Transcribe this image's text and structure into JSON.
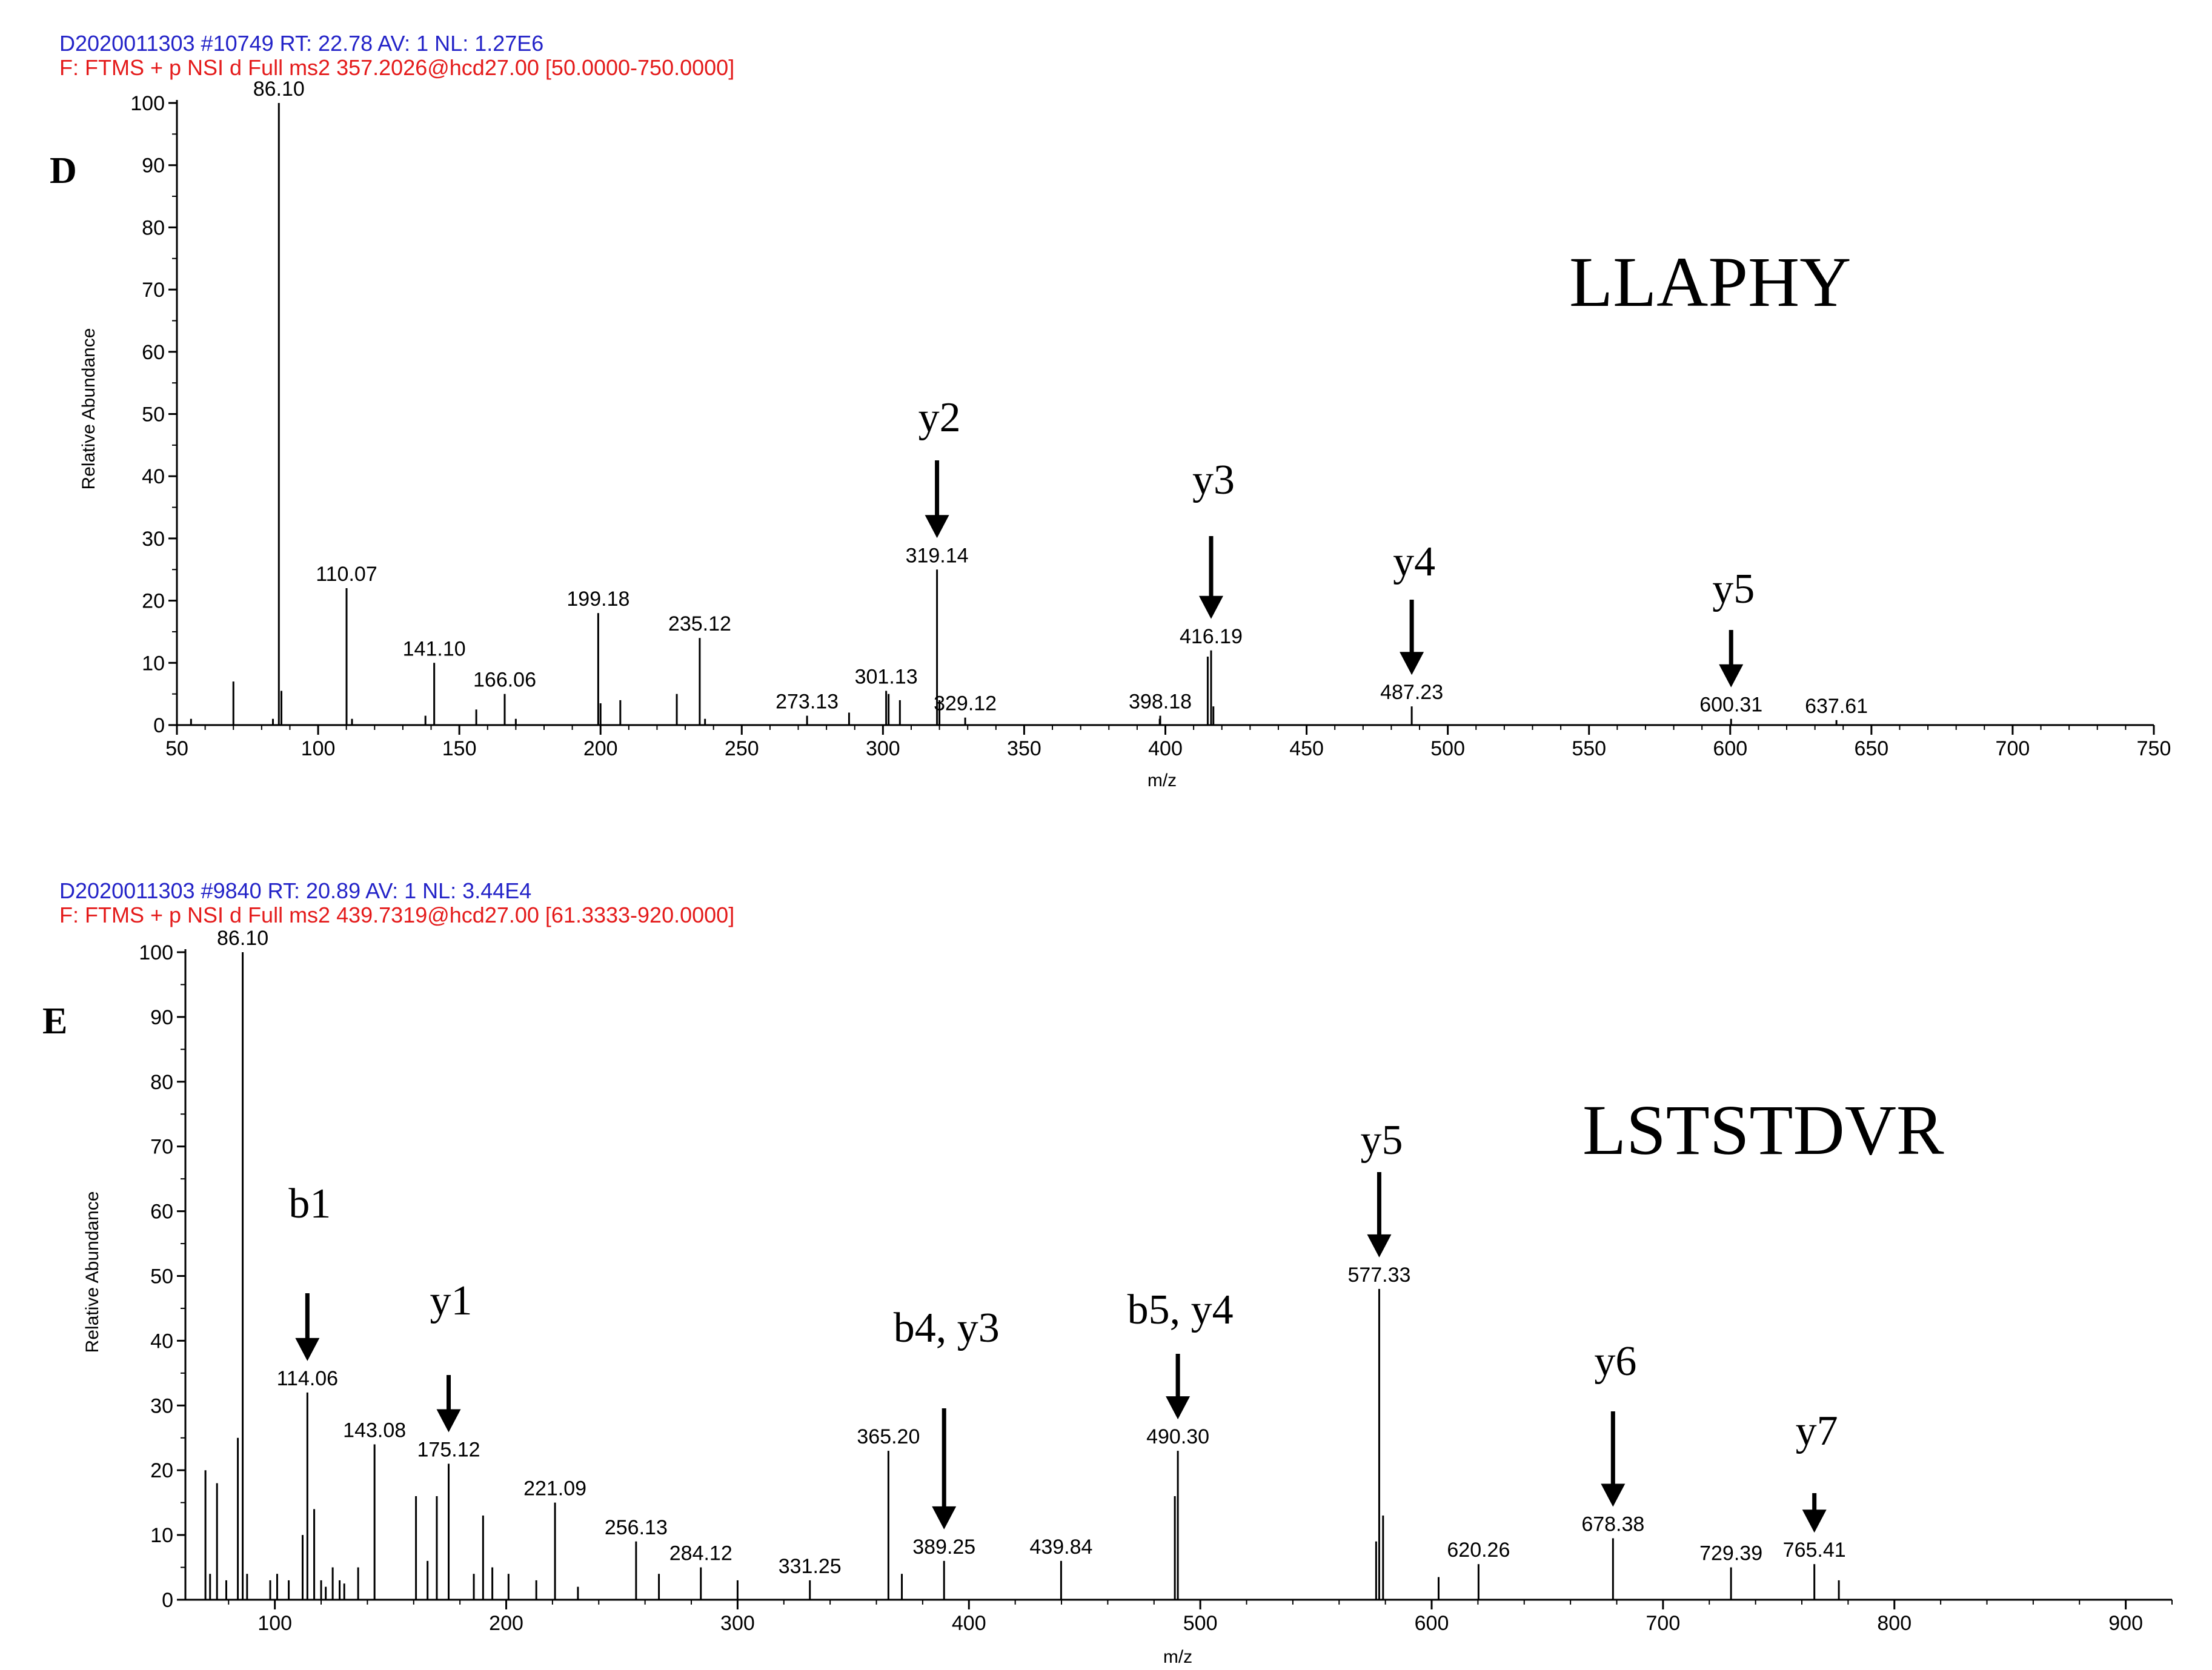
{
  "chart_data": [
    {
      "type": "bar",
      "panel_label": "D",
      "header_line1": "D2020011303 #10749   RT: 22.78   AV: 1   NL: 1.27E6",
      "header_line2": "F: FTMS + p NSI d Full ms2 357.2026@hcd27.00 [50.0000-750.0000]",
      "peptide": "LLAPHY",
      "xlabel": "m/z",
      "ylabel": "Relative Abundance",
      "xlim": [
        50,
        750
      ],
      "ylim": [
        0,
        100
      ],
      "xticks": [
        50,
        100,
        150,
        200,
        250,
        300,
        350,
        400,
        450,
        500,
        550,
        600,
        650,
        700,
        750
      ],
      "yticks": [
        0,
        10,
        20,
        30,
        40,
        50,
        60,
        70,
        80,
        90,
        100
      ],
      "labeled_peaks": [
        {
          "mz": 86.1,
          "intensity": 100,
          "label": "86.10"
        },
        {
          "mz": 110.07,
          "intensity": 22,
          "label": "110.07"
        },
        {
          "mz": 141.1,
          "intensity": 10,
          "label": "141.10"
        },
        {
          "mz": 166.06,
          "intensity": 5,
          "label": "166.06"
        },
        {
          "mz": 199.18,
          "intensity": 18,
          "label": "199.18"
        },
        {
          "mz": 235.12,
          "intensity": 14,
          "label": "235.12"
        },
        {
          "mz": 273.13,
          "intensity": 1.5,
          "label": "273.13"
        },
        {
          "mz": 301.13,
          "intensity": 5.5,
          "label": "301.13"
        },
        {
          "mz": 319.14,
          "intensity": 25,
          "label": "319.14"
        },
        {
          "mz": 329.12,
          "intensity": 1.2,
          "label": "329.12"
        },
        {
          "mz": 398.18,
          "intensity": 1.5,
          "label": "398.18"
        },
        {
          "mz": 416.19,
          "intensity": 12,
          "label": "416.19"
        },
        {
          "mz": 487.23,
          "intensity": 3,
          "label": "487.23"
        },
        {
          "mz": 600.31,
          "intensity": 1,
          "label": "600.31"
        },
        {
          "mz": 637.61,
          "intensity": 0.8,
          "label": "637.61"
        }
      ],
      "minor_peaks": [
        {
          "mz": 55,
          "intensity": 1
        },
        {
          "mz": 70,
          "intensity": 7
        },
        {
          "mz": 84,
          "intensity": 1
        },
        {
          "mz": 87,
          "intensity": 5.5
        },
        {
          "mz": 112,
          "intensity": 1
        },
        {
          "mz": 138,
          "intensity": 1.5
        },
        {
          "mz": 156,
          "intensity": 2.5
        },
        {
          "mz": 170,
          "intensity": 1
        },
        {
          "mz": 200,
          "intensity": 3.5
        },
        {
          "mz": 207,
          "intensity": 4
        },
        {
          "mz": 227,
          "intensity": 5
        },
        {
          "mz": 237,
          "intensity": 1
        },
        {
          "mz": 288,
          "intensity": 2
        },
        {
          "mz": 302,
          "intensity": 5
        },
        {
          "mz": 306,
          "intensity": 4
        },
        {
          "mz": 320,
          "intensity": 4
        },
        {
          "mz": 398,
          "intensity": 1
        },
        {
          "mz": 415,
          "intensity": 11
        },
        {
          "mz": 417,
          "intensity": 3
        }
      ],
      "annotations": [
        {
          "text": "y2",
          "mz": 319.14
        },
        {
          "text": "y3",
          "mz": 416.19
        },
        {
          "text": "y4",
          "mz": 487.23
        },
        {
          "text": "y5",
          "mz": 600.31
        }
      ]
    },
    {
      "type": "bar",
      "panel_label": "E",
      "header_line1": "D2020011303 #9840   RT: 20.89   AV: 1   NL: 3.44E4",
      "header_line2": "F: FTMS + p NSI d Full ms2 439.7319@hcd27.00 [61.3333-920.0000]",
      "peptide": "LSTSTDVR",
      "xlabel": "m/z",
      "ylabel": "Relative Abundance",
      "xlim": [
        61.3333,
        920
      ],
      "ylim": [
        0,
        100
      ],
      "xticks": [
        100,
        200,
        300,
        400,
        500,
        600,
        700,
        800,
        900
      ],
      "yticks": [
        0,
        10,
        20,
        30,
        40,
        50,
        60,
        70,
        80,
        90,
        100
      ],
      "labeled_peaks": [
        {
          "mz": 86.1,
          "intensity": 100,
          "label": "86.10"
        },
        {
          "mz": 114.06,
          "intensity": 32,
          "label": "114.06"
        },
        {
          "mz": 143.08,
          "intensity": 24,
          "label": "143.08"
        },
        {
          "mz": 175.12,
          "intensity": 21,
          "label": "175.12"
        },
        {
          "mz": 221.09,
          "intensity": 15,
          "label": "221.09"
        },
        {
          "mz": 256.13,
          "intensity": 9,
          "label": "256.13"
        },
        {
          "mz": 284.12,
          "intensity": 5,
          "label": "284.12"
        },
        {
          "mz": 331.25,
          "intensity": 3,
          "label": "331.25"
        },
        {
          "mz": 365.2,
          "intensity": 23,
          "label": "365.20"
        },
        {
          "mz": 389.25,
          "intensity": 6,
          "label": "389.25"
        },
        {
          "mz": 439.84,
          "intensity": 6,
          "label": "439.84"
        },
        {
          "mz": 490.3,
          "intensity": 23,
          "label": "490.30"
        },
        {
          "mz": 577.33,
          "intensity": 48,
          "label": "577.33"
        },
        {
          "mz": 620.26,
          "intensity": 5.5,
          "label": "620.26"
        },
        {
          "mz": 678.38,
          "intensity": 9.5,
          "label": "678.38"
        },
        {
          "mz": 729.39,
          "intensity": 5,
          "label": "729.39"
        },
        {
          "mz": 765.41,
          "intensity": 5.5,
          "label": "765.41"
        }
      ],
      "minor_peaks": [
        {
          "mz": 70,
          "intensity": 20
        },
        {
          "mz": 72,
          "intensity": 4
        },
        {
          "mz": 75,
          "intensity": 18
        },
        {
          "mz": 79,
          "intensity": 3
        },
        {
          "mz": 84,
          "intensity": 25
        },
        {
          "mz": 88,
          "intensity": 4
        },
        {
          "mz": 98,
          "intensity": 3
        },
        {
          "mz": 101,
          "intensity": 4
        },
        {
          "mz": 106,
          "intensity": 3
        },
        {
          "mz": 112,
          "intensity": 10
        },
        {
          "mz": 117,
          "intensity": 14
        },
        {
          "mz": 120,
          "intensity": 3
        },
        {
          "mz": 122,
          "intensity": 2
        },
        {
          "mz": 125,
          "intensity": 5
        },
        {
          "mz": 128,
          "intensity": 3
        },
        {
          "mz": 130,
          "intensity": 2.5
        },
        {
          "mz": 136,
          "intensity": 5
        },
        {
          "mz": 161,
          "intensity": 16
        },
        {
          "mz": 166,
          "intensity": 6
        },
        {
          "mz": 170,
          "intensity": 16
        },
        {
          "mz": 186,
          "intensity": 4
        },
        {
          "mz": 190,
          "intensity": 13
        },
        {
          "mz": 194,
          "intensity": 5
        },
        {
          "mz": 201,
          "intensity": 4
        },
        {
          "mz": 213,
          "intensity": 3
        },
        {
          "mz": 231,
          "intensity": 2
        },
        {
          "mz": 266,
          "intensity": 4
        },
        {
          "mz": 300,
          "intensity": 3
        },
        {
          "mz": 371,
          "intensity": 4
        },
        {
          "mz": 489,
          "intensity": 16
        },
        {
          "mz": 576,
          "intensity": 9
        },
        {
          "mz": 579,
          "intensity": 13
        },
        {
          "mz": 603,
          "intensity": 3.5
        },
        {
          "mz": 776,
          "intensity": 3
        }
      ],
      "annotations": [
        {
          "text": "b1",
          "mz": 114.06
        },
        {
          "text": "y1",
          "mz": 175.12
        },
        {
          "text": "b4, y3",
          "mz": 389.25
        },
        {
          "text": "b5, y4",
          "mz": 490.3
        },
        {
          "text": "y5",
          "mz": 577.33
        },
        {
          "text": "y6",
          "mz": 678.38
        },
        {
          "text": "y7",
          "mz": 765.41
        }
      ]
    }
  ]
}
